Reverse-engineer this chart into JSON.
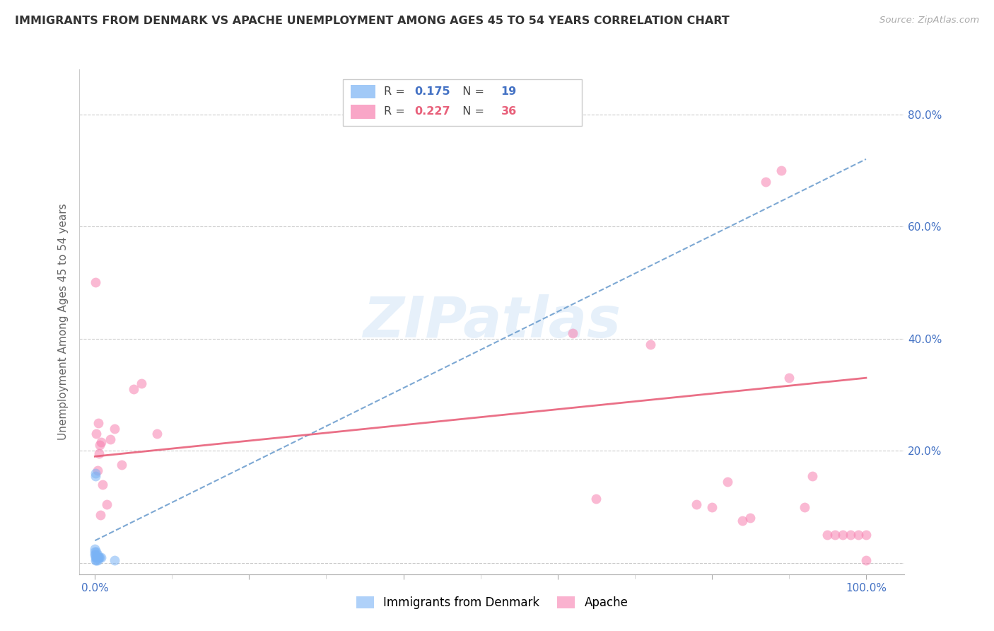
{
  "title": "IMMIGRANTS FROM DENMARK VS APACHE UNEMPLOYMENT AMONG AGES 45 TO 54 YEARS CORRELATION CHART",
  "source": "Source: ZipAtlas.com",
  "ylabel": "Unemployment Among Ages 45 to 54 years",
  "xlim": [
    -0.02,
    1.05
  ],
  "ylim": [
    -0.02,
    0.88
  ],
  "background_color": "#ffffff",
  "watermark_text": "ZIPatlas",
  "denmark_color": "#7ab3f5",
  "apache_color": "#f780b0",
  "denmark_line_color": "#6699cc",
  "apache_line_color": "#e8607a",
  "tick_color": "#4472c4",
  "denmark_x": [
    0.0,
    0.0,
    0.0,
    0.001,
    0.001,
    0.001,
    0.001,
    0.001,
    0.002,
    0.002,
    0.002,
    0.003,
    0.003,
    0.003,
    0.004,
    0.005,
    0.006,
    0.008,
    0.025
  ],
  "denmark_y": [
    0.015,
    0.02,
    0.025,
    0.005,
    0.01,
    0.015,
    0.155,
    0.16,
    0.005,
    0.01,
    0.02,
    0.005,
    0.01,
    0.015,
    0.01,
    0.01,
    0.01,
    0.01,
    0.005
  ],
  "apache_x": [
    0.001,
    0.002,
    0.003,
    0.004,
    0.005,
    0.006,
    0.007,
    0.008,
    0.01,
    0.015,
    0.02,
    0.025,
    0.035,
    0.05,
    0.06,
    0.08,
    0.62,
    0.65,
    0.72,
    0.78,
    0.8,
    0.82,
    0.84,
    0.85,
    0.87,
    0.89,
    0.9,
    0.92,
    0.93,
    0.95,
    0.96,
    0.97,
    0.98,
    0.99,
    1.0,
    1.0
  ],
  "apache_y": [
    0.5,
    0.23,
    0.165,
    0.25,
    0.195,
    0.21,
    0.085,
    0.215,
    0.14,
    0.105,
    0.22,
    0.24,
    0.175,
    0.31,
    0.32,
    0.23,
    0.41,
    0.115,
    0.39,
    0.105,
    0.1,
    0.145,
    0.075,
    0.08,
    0.68,
    0.7,
    0.33,
    0.1,
    0.155,
    0.05,
    0.05,
    0.05,
    0.05,
    0.05,
    0.05,
    0.005
  ],
  "denmark_trend_x": [
    0.0,
    1.0
  ],
  "denmark_trend_y": [
    0.04,
    0.72
  ],
  "apache_trend_x": [
    0.0,
    1.0
  ],
  "apache_trend_y": [
    0.19,
    0.33
  ],
  "marker_size": 100,
  "marker_alpha": 0.55,
  "xtick_positions": [
    0.0,
    0.2,
    0.4,
    0.6,
    0.8,
    1.0
  ],
  "xtick_labels": [
    "0.0%",
    "",
    "",
    "",
    "",
    "100.0%"
  ],
  "ytick_positions": [
    0.0,
    0.2,
    0.4,
    0.6,
    0.8
  ],
  "ytick_labels_right": [
    "",
    "20.0%",
    "40.0%",
    "60.0%",
    "80.0%"
  ],
  "grid_color": "#cccccc",
  "legend_r1": "0.175",
  "legend_n1": "19",
  "legend_r2": "0.227",
  "legend_n2": "36"
}
